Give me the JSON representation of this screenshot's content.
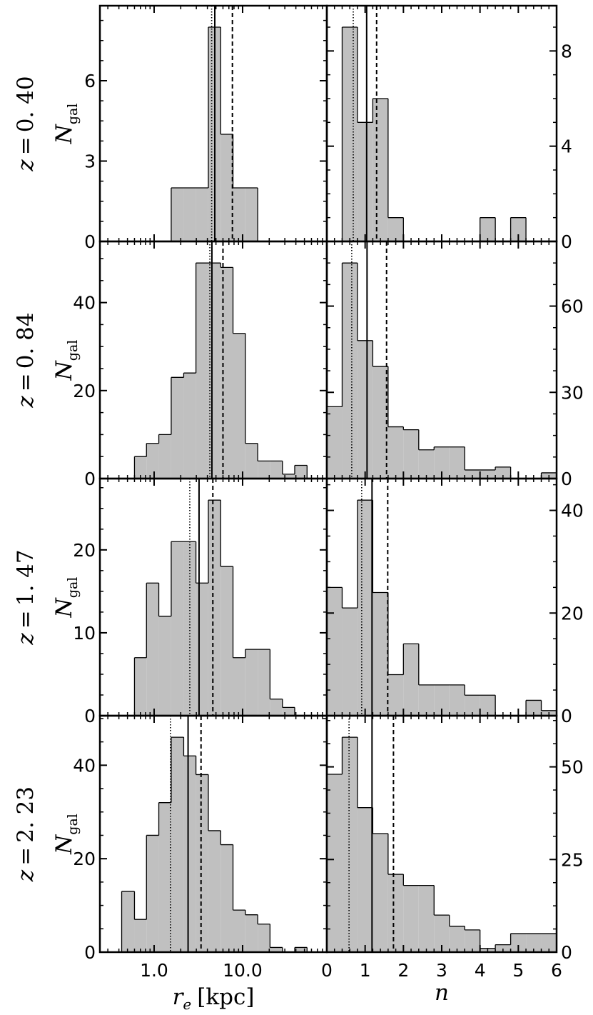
{
  "chart_data": {
    "type": "bar",
    "subtype": "histogram-grid",
    "grid": false,
    "bar_color": "#c0c0c0",
    "edge_color": "#000000",
    "xlabel_left": "r_e [kpc]",
    "xlabel_left_parts": {
      "symbol": "r",
      "subscript": "e",
      "unit": "[kpc]"
    },
    "xlabel_right": "n",
    "ylabel": "N_gal",
    "ylabel_parts": {
      "symbol": "N",
      "subscript": "gal"
    },
    "re_axis": {
      "scale": "log",
      "xlim": [
        0.244,
        89.5
      ],
      "ticks": [
        1,
        10
      ],
      "tick_labels": [
        "1.0",
        "10.0"
      ],
      "bin_edges": [
        0.43,
        0.6,
        0.82,
        1.13,
        1.56,
        2.16,
        2.97,
        4.1,
        5.65,
        7.79,
        10.74,
        14.81,
        20.4,
        28.2,
        38.8,
        53.5
      ]
    },
    "n_axis": {
      "scale": "linear",
      "xlim": [
        0,
        6
      ],
      "ticks": [
        0,
        1,
        2,
        3,
        4,
        5,
        6
      ],
      "tick_labels": [
        "0",
        "1",
        "2",
        "3",
        "4",
        "5",
        "6"
      ],
      "bin_edges": [
        0,
        0.4,
        0.8,
        1.2,
        1.6,
        2.0,
        2.4,
        2.8,
        3.2,
        3.6,
        4.0,
        4.4,
        4.8,
        5.2,
        5.6,
        6.0
      ]
    },
    "line_styles": {
      "dotted": "dotted",
      "solid": "solid",
      "dashed": "dashed"
    },
    "panels": [
      {
        "label": "z = 0.40",
        "label_parts": {
          "var": "z",
          "eq": "=",
          "value": "0. 40"
        },
        "re": {
          "counts": [
            0,
            0,
            0,
            0,
            2,
            2,
            2,
            8,
            4,
            2,
            2,
            0,
            0,
            0,
            0
          ],
          "ylim": [
            0,
            8.8
          ],
          "yticks": [
            0,
            3,
            6
          ],
          "yminor_step": 0.75,
          "lines": {
            "dotted": 4.47,
            "solid": 4.85,
            "dashed": 7.67
          }
        },
        "n": {
          "counts": [
            0,
            9,
            5,
            6,
            1,
            0,
            0,
            0,
            0,
            0,
            1,
            0,
            1,
            0,
            0
          ],
          "ylim": [
            0,
            9.9
          ],
          "yticks": [
            0,
            4,
            8
          ],
          "yminor_step": 1,
          "lines": {
            "dotted": 0.69,
            "solid": 1.04,
            "dashed": 1.3
          }
        }
      },
      {
        "label": "z = 0.84",
        "label_parts": {
          "var": "z",
          "eq": "=",
          "value": "0. 84"
        },
        "re": {
          "counts": [
            0,
            5,
            8,
            10,
            23,
            24,
            49,
            49,
            48,
            33,
            8,
            4,
            4,
            1,
            3
          ],
          "ylim": [
            0,
            53.9
          ],
          "yticks": [
            0,
            20,
            40
          ],
          "yminor_step": 5,
          "lines": {
            "dotted": 4.26,
            "solid": 4.5,
            "dashed": 6.0
          }
        },
        "n": {
          "counts": [
            25,
            75,
            48,
            39,
            18,
            17,
            10,
            11,
            11,
            3,
            3,
            4,
            0,
            0,
            2
          ],
          "ylim": [
            0,
            82.5
          ],
          "yticks": [
            0,
            30,
            60
          ],
          "yminor_step": 7.5,
          "lines": {
            "dotted": 0.65,
            "solid": 1.05,
            "dashed": 1.56
          }
        }
      },
      {
        "label": "z = 1.47",
        "label_parts": {
          "var": "z",
          "eq": "=",
          "value": "1. 47"
        },
        "re": {
          "counts": [
            0,
            7,
            16,
            12,
            21,
            21,
            16,
            26,
            18,
            7,
            8,
            8,
            2,
            1,
            0
          ],
          "ylim": [
            0,
            28.6
          ],
          "yticks": [
            0,
            10,
            20
          ],
          "yminor_step": 2.5,
          "lines": {
            "dotted": 2.53,
            "solid": 3.22,
            "dashed": 4.61
          }
        },
        "n": {
          "counts": [
            25,
            21,
            42,
            24,
            8,
            14,
            6,
            6,
            6,
            4,
            4,
            0,
            0,
            3,
            1
          ],
          "ylim": [
            0,
            46.2
          ],
          "yticks": [
            0,
            20,
            40
          ],
          "yminor_step": 5,
          "lines": {
            "dotted": 0.91,
            "solid": 1.18,
            "dashed": 1.59
          }
        }
      },
      {
        "label": "z = 2.23",
        "label_parts": {
          "var": "z",
          "eq": "=",
          "value": "2. 23"
        },
        "re": {
          "counts": [
            13,
            7,
            25,
            32,
            46,
            42,
            38,
            26,
            23,
            9,
            8,
            6,
            1,
            0,
            1
          ],
          "ylim": [
            0,
            50.6
          ],
          "yticks": [
            0,
            20,
            40
          ],
          "yminor_step": 5,
          "lines": {
            "dotted": 1.53,
            "solid": 2.42,
            "dashed": 3.39
          }
        },
        "n": {
          "counts": [
            48,
            58,
            39,
            32,
            21,
            18,
            18,
            10,
            7,
            6,
            1,
            2,
            5,
            5,
            5
          ],
          "ylim": [
            0,
            63.8
          ],
          "yticks": [
            0,
            25,
            50
          ],
          "yminor_step": 6.25,
          "lines": {
            "dotted": 0.58,
            "solid": 1.18,
            "dashed": 1.74
          }
        }
      }
    ]
  }
}
